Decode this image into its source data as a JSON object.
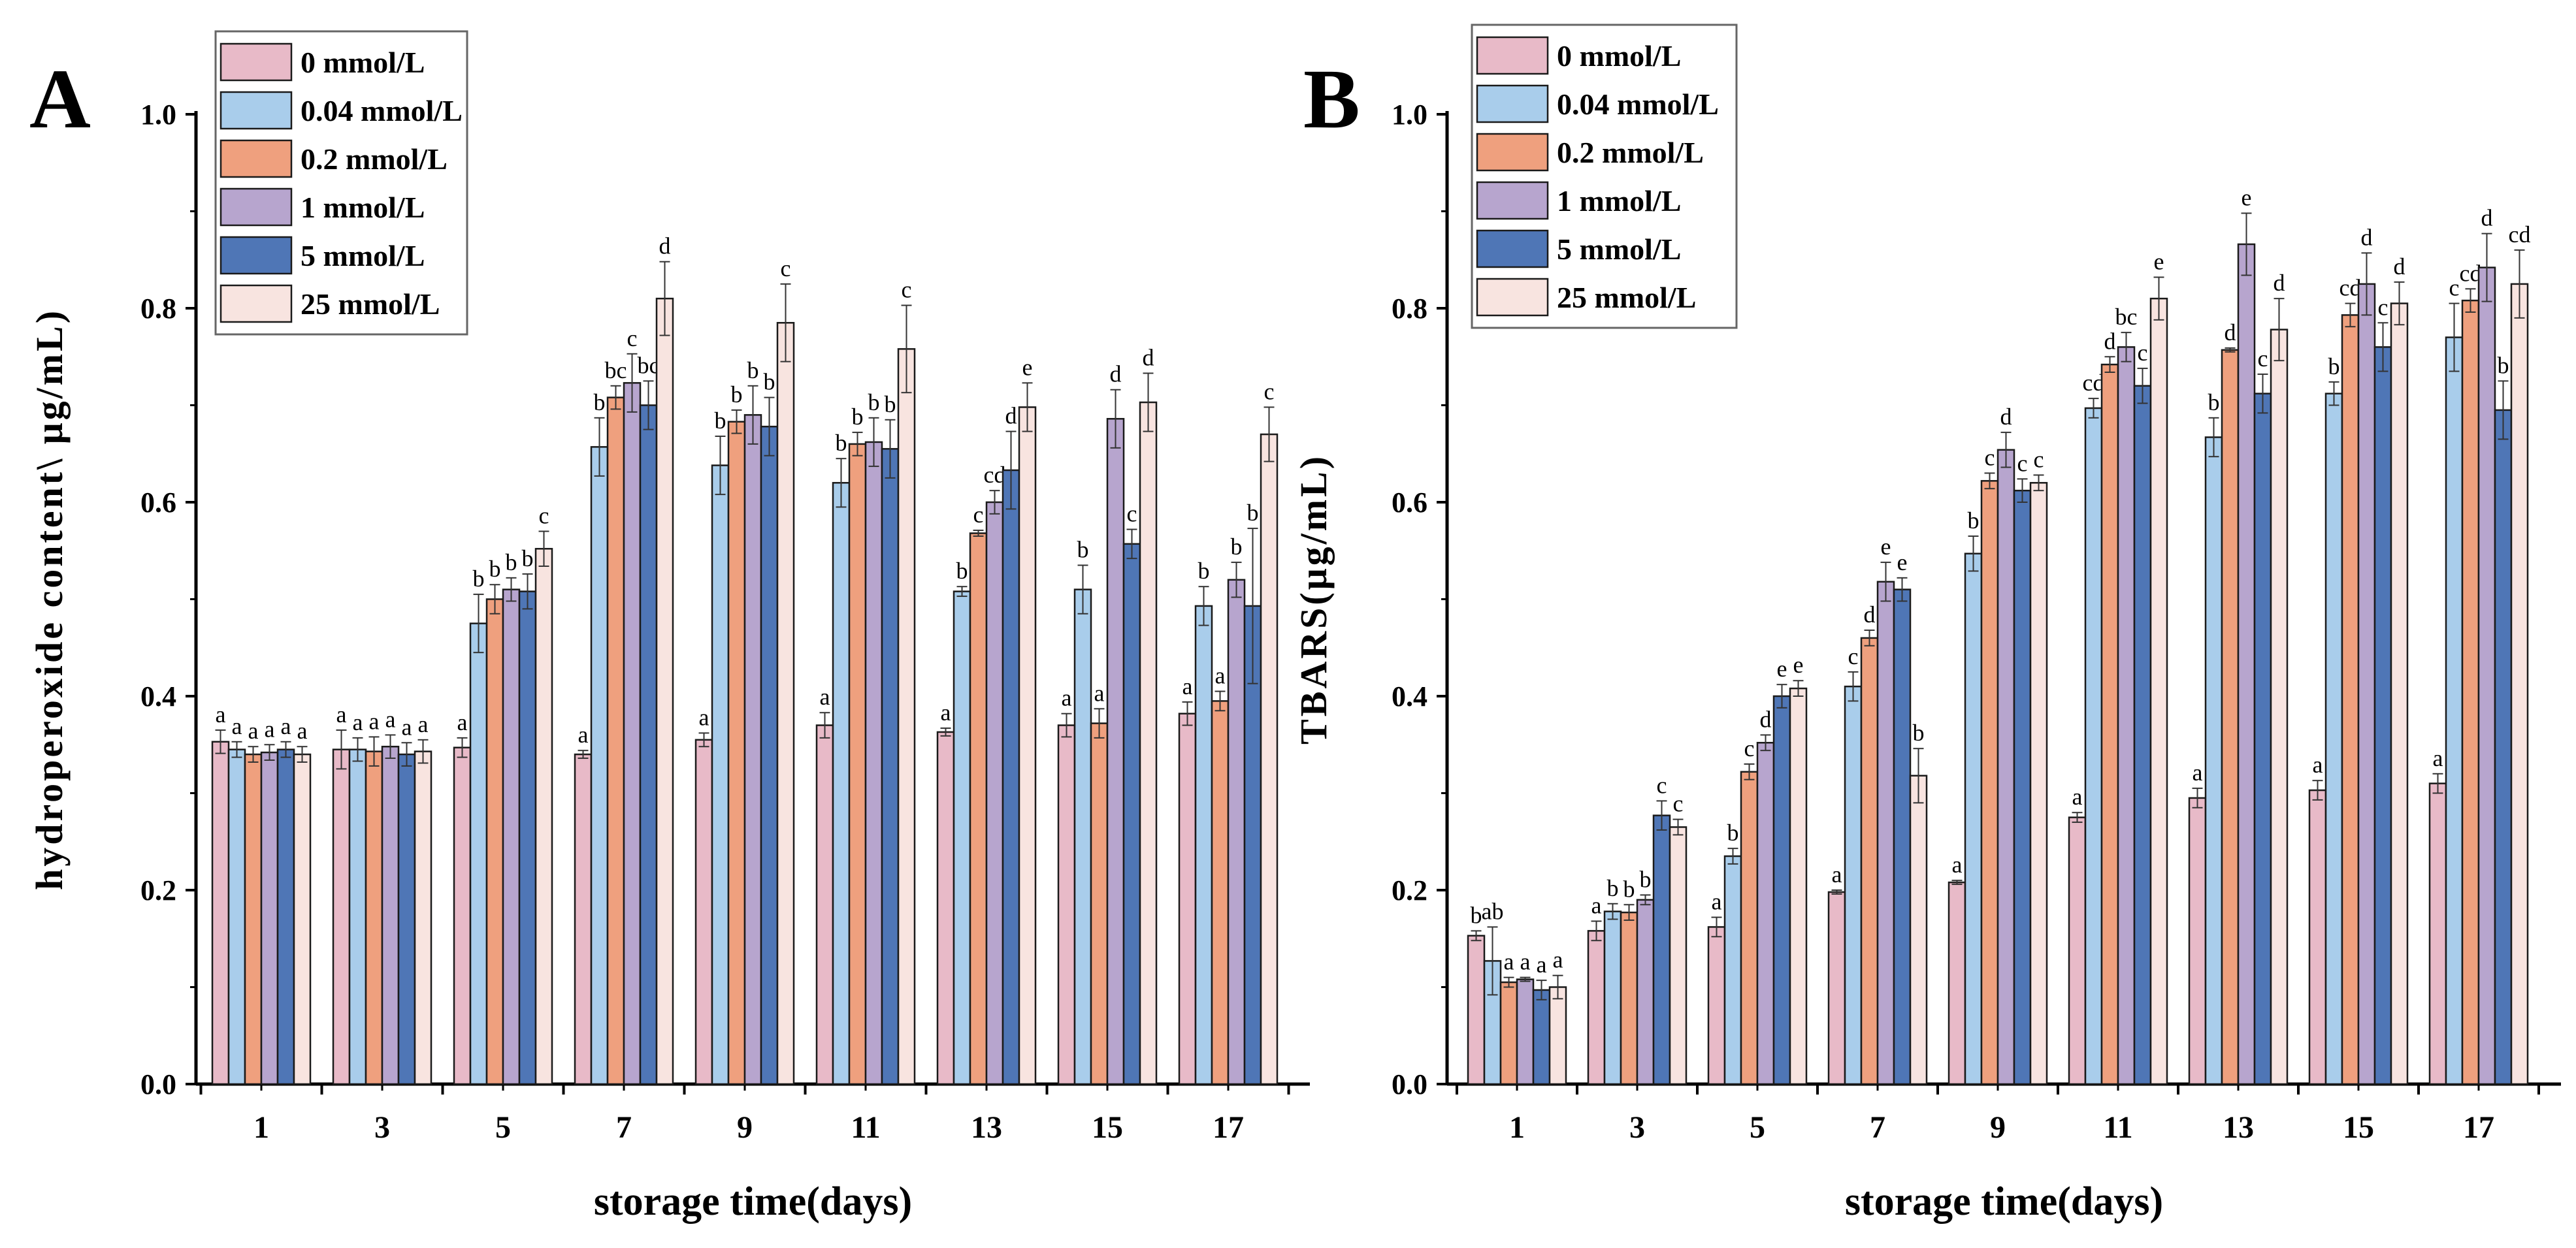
{
  "chart_data": [
    {
      "type": "bar",
      "panel_label": "A",
      "title": "",
      "xlabel": "storage time(days)",
      "ylabel": "hydroperoxide content\\ μg/mL)",
      "ylim": [
        0,
        1.0
      ],
      "yticks": [
        "0.0",
        "0.2",
        "0.4",
        "0.6",
        "0.8",
        "1.0"
      ],
      "categories": [
        "1",
        "3",
        "5",
        "7",
        "9",
        "11",
        "13",
        "15",
        "17"
      ],
      "legend_position": "top-left",
      "series": [
        {
          "name": "0 mmol/L",
          "color": "#E8BAC8",
          "values": [
            0.353,
            0.345,
            0.347,
            0.34,
            0.355,
            0.37,
            0.363,
            0.37,
            0.382
          ],
          "errors": [
            0.012,
            0.02,
            0.01,
            0.004,
            0.007,
            0.013,
            0.004,
            0.012,
            0.012
          ],
          "letters": [
            "a",
            "a",
            "a",
            "a",
            "a",
            "a",
            "a",
            "a",
            "a"
          ]
        },
        {
          "name": "0.04 mmol/L",
          "color": "#A9CDEB",
          "values": [
            0.345,
            0.345,
            0.475,
            0.657,
            0.638,
            0.62,
            0.508,
            0.51,
            0.493
          ],
          "errors": [
            0.008,
            0.012,
            0.03,
            0.03,
            0.03,
            0.025,
            0.005,
            0.025,
            0.02
          ],
          "letters": [
            "a",
            "a",
            "b",
            "b",
            "b",
            "b",
            "b",
            "b",
            "b"
          ]
        },
        {
          "name": "0.2 mmol/L",
          "color": "#EFA07E",
          "values": [
            0.34,
            0.343,
            0.5,
            0.708,
            0.683,
            0.66,
            0.568,
            0.372,
            0.395
          ],
          "errors": [
            0.008,
            0.015,
            0.015,
            0.012,
            0.012,
            0.012,
            0.003,
            0.015,
            0.01
          ],
          "letters": [
            "a",
            "a",
            "b",
            "bc",
            "b",
            "b",
            "c",
            "a",
            "a"
          ]
        },
        {
          "name": "1 mmol/L",
          "color": "#B7A5CE",
          "values": [
            0.342,
            0.348,
            0.51,
            0.723,
            0.69,
            0.662,
            0.6,
            0.686,
            0.52
          ],
          "errors": [
            0.008,
            0.012,
            0.012,
            0.03,
            0.03,
            0.025,
            0.012,
            0.03,
            0.018
          ],
          "letters": [
            "a",
            "a",
            "b",
            "c",
            "b",
            "b",
            "cd",
            "d",
            "b"
          ]
        },
        {
          "name": "5 mmol/L",
          "color": "#4F76B6",
          "values": [
            0.345,
            0.34,
            0.508,
            0.7,
            0.678,
            0.655,
            0.633,
            0.557,
            0.493
          ],
          "errors": [
            0.008,
            0.012,
            0.018,
            0.025,
            0.03,
            0.03,
            0.04,
            0.015,
            0.08
          ],
          "letters": [
            "a",
            "a",
            "b",
            "bc",
            "b",
            "b",
            "d",
            "c",
            "b"
          ]
        },
        {
          "name": "25 mmol/L",
          "color": "#F8E4E0",
          "values": [
            0.34,
            0.343,
            0.552,
            0.81,
            0.785,
            0.758,
            0.698,
            0.703,
            0.67
          ],
          "errors": [
            0.008,
            0.012,
            0.018,
            0.038,
            0.04,
            0.045,
            0.025,
            0.03,
            0.028
          ],
          "letters": [
            "a",
            "a",
            "c",
            "d",
            "c",
            "c",
            "e",
            "d",
            "c"
          ]
        }
      ]
    },
    {
      "type": "bar",
      "panel_label": "B",
      "title": "",
      "xlabel": "storage time(days)",
      "ylabel": "TBARS(μg/mL)",
      "ylim": [
        0,
        1.0
      ],
      "yticks": [
        "0.0",
        "0.2",
        "0.4",
        "0.6",
        "0.8",
        "1.0"
      ],
      "categories": [
        "1",
        "3",
        "5",
        "7",
        "9",
        "11",
        "13",
        "15",
        "17"
      ],
      "legend_position": "top-left",
      "series": [
        {
          "name": "0 mmol/L",
          "color": "#E8BAC8",
          "values": [
            0.153,
            0.158,
            0.162,
            0.198,
            0.208,
            0.275,
            0.295,
            0.303,
            0.31
          ],
          "errors": [
            0.005,
            0.01,
            0.01,
            0.002,
            0.002,
            0.005,
            0.01,
            0.01,
            0.01
          ],
          "letters": [
            "b",
            "a",
            "a",
            "a",
            "a",
            "a",
            "a",
            "a",
            "a"
          ]
        },
        {
          "name": "0.04 mmol/L",
          "color": "#A9CDEB",
          "values": [
            0.127,
            0.178,
            0.235,
            0.41,
            0.547,
            0.697,
            0.667,
            0.712,
            0.77
          ],
          "errors": [
            0.035,
            0.008,
            0.008,
            0.015,
            0.018,
            0.01,
            0.02,
            0.012,
            0.035
          ],
          "letters": [
            "ab",
            "b",
            "b",
            "c",
            "b",
            "cd",
            "b",
            "b",
            "c"
          ]
        },
        {
          "name": "0.2 mmol/L",
          "color": "#EFA07E",
          "values": [
            0.105,
            0.177,
            0.322,
            0.46,
            0.622,
            0.742,
            0.757,
            0.793,
            0.808
          ],
          "errors": [
            0.005,
            0.008,
            0.008,
            0.008,
            0.008,
            0.008,
            0.002,
            0.012,
            0.012
          ],
          "letters": [
            "a",
            "b",
            "c",
            "d",
            "c",
            "d",
            "d",
            "cd",
            "cd"
          ]
        },
        {
          "name": "1 mmol/L",
          "color": "#B7A5CE",
          "values": [
            0.108,
            0.19,
            0.352,
            0.518,
            0.654,
            0.76,
            0.866,
            0.825,
            0.842
          ],
          "errors": [
            0.002,
            0.005,
            0.008,
            0.02,
            0.018,
            0.015,
            0.032,
            0.032,
            0.035
          ],
          "letters": [
            "a",
            "b",
            "d",
            "e",
            "d",
            "bc",
            "e",
            "d",
            "d"
          ]
        },
        {
          "name": "5 mmol/L",
          "color": "#4F76B6",
          "values": [
            0.097,
            0.277,
            0.4,
            0.51,
            0.612,
            0.72,
            0.712,
            0.76,
            0.695
          ],
          "errors": [
            0.01,
            0.015,
            0.012,
            0.012,
            0.012,
            0.018,
            0.02,
            0.025,
            0.03
          ],
          "letters": [
            "a",
            "c",
            "e",
            "e",
            "c",
            "c",
            "c",
            "c",
            "b"
          ]
        },
        {
          "name": "25 mmol/L",
          "color": "#F8E4E0",
          "values": [
            0.1,
            0.265,
            0.408,
            0.318,
            0.62,
            0.81,
            0.778,
            0.805,
            0.825
          ],
          "errors": [
            0.012,
            0.008,
            0.008,
            0.028,
            0.008,
            0.022,
            0.032,
            0.022,
            0.035
          ],
          "letters": [
            "a",
            "c",
            "e",
            "b",
            "c",
            "e",
            "d",
            "d",
            "cd"
          ]
        }
      ]
    }
  ]
}
